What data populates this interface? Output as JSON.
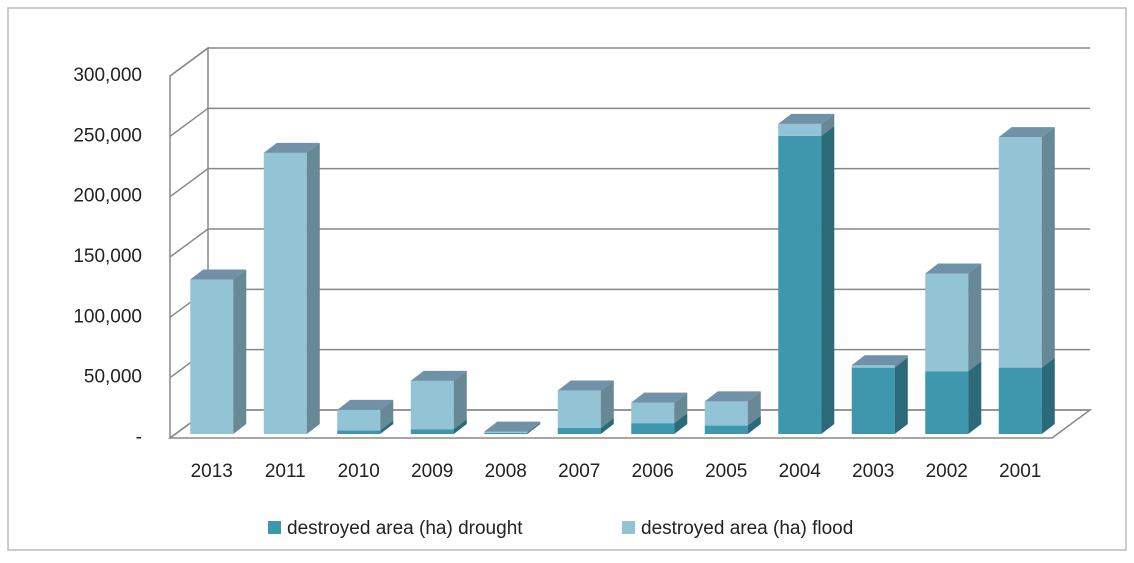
{
  "chart_data": {
    "type": "bar",
    "stacked": true,
    "categories": [
      "2013",
      "2011",
      "2010",
      "2009",
      "2008",
      "2007",
      "2006",
      "2005",
      "2004",
      "2003",
      "2002",
      "2001"
    ],
    "series": [
      {
        "name": "destroyed area (ha) drought",
        "color": "#3f97ae",
        "values": [
          0,
          0,
          3000,
          4000,
          1000,
          5000,
          9000,
          7000,
          247000,
          55000,
          52000,
          55000
        ]
      },
      {
        "name": "destroyed area (ha) flood",
        "color": "#93c4d6",
        "values": [
          128000,
          233000,
          17000,
          40000,
          1000,
          31000,
          17000,
          20000,
          10000,
          2000,
          81000,
          191000
        ]
      }
    ],
    "ylim": [
      0,
      300000
    ],
    "yticks": [
      {
        "value": 0,
        "label": "-"
      },
      {
        "value": 50000,
        "label": "50,000"
      },
      {
        "value": 100000,
        "label": "100,000"
      },
      {
        "value": 150000,
        "label": "150,000"
      },
      {
        "value": 200000,
        "label": "200,000"
      },
      {
        "value": 250000,
        "label": "250,000"
      },
      {
        "value": 300000,
        "label": "300,000"
      }
    ],
    "grid": true,
    "legend": "bottom"
  }
}
